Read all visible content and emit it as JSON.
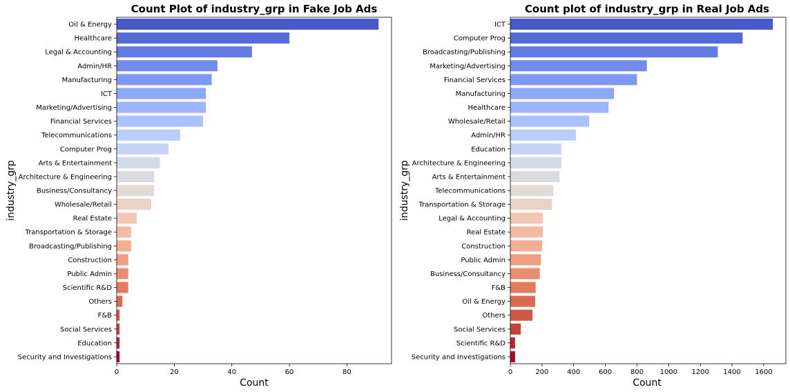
{
  "chart_data": [
    {
      "type": "bar",
      "orientation": "horizontal",
      "title": "Count Plot of industry_grp in Fake Job Ads",
      "xlabel": "Count",
      "ylabel": "industry_grp",
      "xlim": [
        0,
        95.5
      ],
      "xticks": [
        0,
        20,
        40,
        60,
        80
      ],
      "grid": false,
      "palette": "coolwarm",
      "categories": [
        "Oil & Energy",
        "Healthcare",
        "Legal & Accounting",
        "Admin/HR",
        "Manufacturing",
        "ICT",
        "Marketing/Advertising",
        "Financial Services",
        "Telecommunications",
        "Computer Prog",
        "Arts & Entertainment",
        "Architecture & Engineering",
        "Business/Consultancy",
        "Wholesale/Retail",
        "Real Estate",
        "Transportation & Storage",
        "Broadcasting/Publishing",
        "Construction",
        "Public Admin",
        "Scientific R&D",
        "Others",
        "F&B",
        "Social Services",
        "Education",
        "Security and Investigations"
      ],
      "values": [
        91,
        60,
        47,
        35,
        33,
        31,
        31,
        30,
        22,
        18,
        15,
        13,
        13,
        12,
        7,
        5,
        5,
        4,
        4,
        4,
        2,
        1,
        1,
        1,
        1
      ]
    },
    {
      "type": "bar",
      "orientation": "horizontal",
      "title": "Count plot of industry_grp in Real Job Ads",
      "xlabel": "Count",
      "ylabel": "industry_grp",
      "xlim": [
        0,
        1740
      ],
      "xticks": [
        0,
        200,
        400,
        600,
        800,
        1000,
        1200,
        1400,
        1600
      ],
      "grid": false,
      "palette": "coolwarm",
      "categories": [
        "ICT",
        "Computer Prog",
        "Broadcasting/Publishing",
        "Marketing/Advertising",
        "Financial Services",
        "Manufacturing",
        "Healthcare",
        "Wholesale/Retail",
        "Admin/HR",
        "Education",
        "Architecture & Engineering",
        "Arts & Entertainment",
        "Telecommunications",
        "Transportation & Storage",
        "Legal & Accounting",
        "Real Estate",
        "Construction",
        "Public Admin",
        "Business/Consultancy",
        "F&B",
        "Oil & Energy",
        "Others",
        "Social Services",
        "Scientific R&D",
        "Security and Investigations"
      ],
      "values": [
        1658,
        1467,
        1310,
        862,
        800,
        655,
        620,
        498,
        414,
        322,
        322,
        311,
        272,
        263,
        205,
        205,
        201,
        193,
        186,
        160,
        157,
        140,
        66,
        30,
        30
      ]
    }
  ],
  "colors": {
    "palette": [
      "#4659c8",
      "#5e77e0",
      "#7791ef",
      "#8fa9fa",
      "#a8c0fe",
      "#c0d3fa",
      "#d3dbe6",
      "#e2dad5",
      "#f0cdbc",
      "#f4b59a",
      "#f09c7c",
      "#e47e61",
      "#d46149",
      "#c13f35",
      "#b40426"
    ]
  }
}
